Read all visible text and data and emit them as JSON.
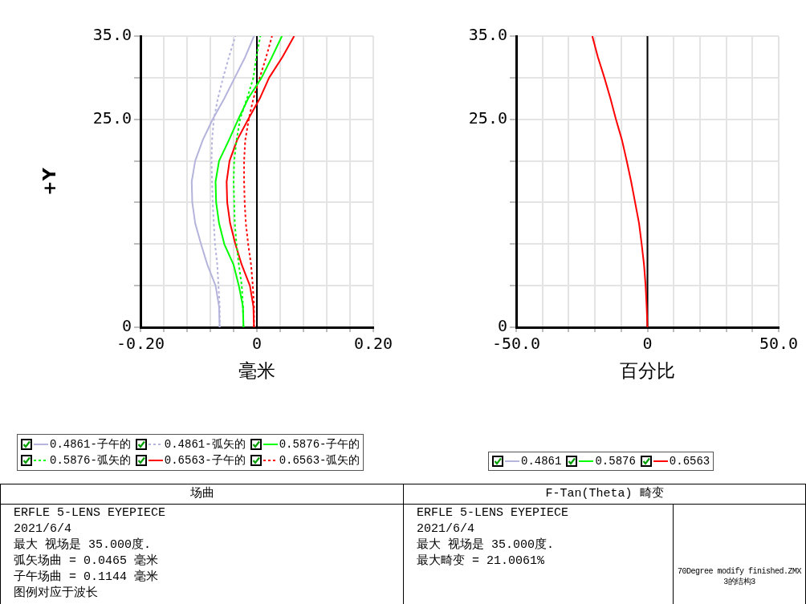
{
  "chart_data": [
    {
      "type": "line",
      "title": "场曲",
      "xlabel": "毫米",
      "ylabel": "+Y",
      "xlim": [
        -0.2,
        0.2
      ],
      "xticks": [
        {
          "value": -0.2,
          "label": "-0.20"
        },
        {
          "value": -0.16,
          "label": null
        },
        {
          "value": -0.12,
          "label": null
        },
        {
          "value": -0.08,
          "label": null
        },
        {
          "value": -0.04,
          "label": null
        },
        0,
        {
          "value": 0.04,
          "label": null
        },
        {
          "value": 0.08,
          "label": null
        },
        {
          "value": 0.12,
          "label": null
        },
        {
          "value": 0.16,
          "label": null
        },
        {
          "value": 0.2,
          "label": "0.20"
        }
      ],
      "ylim": [
        0,
        35
      ],
      "yticks": [
        0,
        {
          "value": 5,
          "label": null
        },
        {
          "value": 10,
          "label": null
        },
        {
          "value": 15,
          "label": null
        },
        {
          "value": 20,
          "label": null
        },
        {
          "value": 25,
          "label": "25.0"
        },
        {
          "value": 30,
          "label": null
        },
        {
          "value": 35,
          "label": "35.0"
        }
      ],
      "grid": true,
      "legend": "bottom",
      "ref_lines": [
        {
          "axis": "x",
          "value": 0,
          "color": "#000000"
        }
      ],
      "series": [
        {
          "name": "0.4861-子午的",
          "color": "#b4b4dc",
          "line_style": "solid",
          "x": [
            -0.064,
            -0.065,
            -0.071,
            -0.085,
            -0.096,
            -0.106,
            -0.111,
            -0.112,
            -0.106,
            -0.093,
            -0.076,
            -0.056,
            -0.038,
            -0.02,
            -0.005
          ],
          "values": [
            0,
            2.5,
            5,
            7.5,
            10,
            12.5,
            15,
            17.5,
            20,
            22.5,
            25,
            27.5,
            30,
            32.5,
            35
          ]
        },
        {
          "name": "0.4861-弧矢的",
          "color": "#b4b4dc",
          "line_style": "dotted",
          "x": [
            -0.064,
            -0.064,
            -0.066,
            -0.068,
            -0.072,
            -0.074,
            -0.076,
            -0.077,
            -0.078,
            -0.077,
            -0.074,
            -0.067,
            -0.058,
            -0.048,
            -0.037
          ],
          "values": [
            0,
            2.5,
            5,
            7.5,
            10,
            12.5,
            15,
            17.5,
            20,
            22.5,
            25,
            27.5,
            30,
            32.5,
            35
          ]
        },
        {
          "name": "0.5876-子午的",
          "color": "#00ff00",
          "line_style": "solid",
          "x": [
            -0.023,
            -0.024,
            -0.031,
            -0.04,
            -0.056,
            -0.065,
            -0.07,
            -0.071,
            -0.065,
            -0.048,
            -0.032,
            -0.015,
            0.008,
            0.026,
            0.043
          ],
          "values": [
            0,
            2.5,
            5,
            7.5,
            10,
            12.5,
            15,
            17.5,
            20,
            22.5,
            25,
            27.5,
            30,
            32.5,
            35
          ]
        },
        {
          "name": "0.5876-弧矢的",
          "color": "#00ff00",
          "line_style": "dotted",
          "x": [
            -0.023,
            -0.024,
            -0.026,
            -0.031,
            -0.035,
            -0.038,
            -0.039,
            -0.04,
            -0.039,
            -0.035,
            -0.029,
            -0.017,
            -0.006,
            -0.001,
            0.006
          ],
          "values": [
            0,
            2.5,
            5,
            7.5,
            10,
            12.5,
            15,
            17.5,
            20,
            22.5,
            25,
            27.5,
            30,
            32.5,
            35
          ]
        },
        {
          "name": "0.6563-子午的",
          "color": "#ff0000",
          "line_style": "solid",
          "x": [
            -0.005,
            -0.006,
            -0.012,
            -0.026,
            -0.037,
            -0.046,
            -0.051,
            -0.052,
            -0.047,
            -0.034,
            -0.015,
            0.005,
            0.021,
            0.044,
            0.064
          ],
          "values": [
            0,
            2.5,
            5,
            7.5,
            10,
            12.5,
            15,
            17.5,
            20,
            22.5,
            25,
            27.5,
            30,
            32.5,
            35
          ]
        },
        {
          "name": "0.6563-弧矢的",
          "color": "#ff0000",
          "line_style": "dotted",
          "x": [
            -0.005,
            -0.005,
            -0.007,
            -0.01,
            -0.015,
            -0.019,
            -0.021,
            -0.022,
            -0.022,
            -0.02,
            -0.014,
            -0.006,
            0.005,
            0.016,
            0.026
          ],
          "values": [
            0,
            2.5,
            5,
            7.5,
            10,
            12.5,
            15,
            17.5,
            20,
            22.5,
            25,
            27.5,
            30,
            32.5,
            35
          ]
        }
      ],
      "annotations": [
        "ERFLE 5-LENS EYEPIECE",
        "2021/6/4",
        "最大 视场是 35.000度.",
        "弧矢场曲 = 0.0465 毫米",
        "子午场曲 = 0.1144 毫米",
        "图例对应于波长"
      ]
    },
    {
      "type": "line",
      "title": "F-Tan(Theta) 畸变",
      "xlabel": "百分比",
      "xlim": [
        -50,
        50
      ],
      "xticks": [
        {
          "value": -50,
          "label": "-50.0"
        },
        {
          "value": -40,
          "label": null
        },
        {
          "value": -30,
          "label": null
        },
        {
          "value": -20,
          "label": null
        },
        {
          "value": -10,
          "label": null
        },
        0,
        {
          "value": 10,
          "label": null
        },
        {
          "value": 20,
          "label": null
        },
        {
          "value": 30,
          "label": null
        },
        {
          "value": 40,
          "label": null
        },
        {
          "value": 50,
          "label": "50.0"
        }
      ],
      "ylim": [
        0,
        35
      ],
      "yticks": [
        0,
        {
          "value": 5,
          "label": null
        },
        {
          "value": 10,
          "label": null
        },
        {
          "value": 15,
          "label": null
        },
        {
          "value": 20,
          "label": null
        },
        {
          "value": 25,
          "label": "25.0"
        },
        {
          "value": 30,
          "label": null
        },
        {
          "value": 35,
          "label": "35.0"
        }
      ],
      "grid": true,
      "legend": "bottom",
      "ref_lines": [
        {
          "axis": "x",
          "value": 0,
          "color": "#000000"
        }
      ],
      "series": [
        {
          "name": "0.4861",
          "color": "#b4b4dc",
          "line_style": "solid",
          "values": [
            null
          ]
        },
        {
          "name": "0.5876",
          "color": "#00ff00",
          "line_style": "solid",
          "values": [
            null
          ]
        },
        {
          "name": "0.6563",
          "color": "#ff0000",
          "line_style": "solid",
          "x": [
            0,
            -0.3,
            -0.7,
            -1.3,
            -2.2,
            -3.2,
            -4.7,
            -6.2,
            -7.9,
            -9.7,
            -12.0,
            -14.1,
            -16.4,
            -18.9,
            -21.0
          ],
          "values": [
            0,
            2.5,
            5,
            7.5,
            10,
            12.5,
            15,
            17.5,
            20,
            22.5,
            25,
            27.5,
            30,
            32.5,
            35
          ]
        }
      ],
      "annotations": [
        "ERFLE 5-LENS EYEPIECE",
        "2021/6/4",
        "最大 视场是 35.000度.",
        "最大畸变 = 21.0061%"
      ]
    },
    {
      "type": "other",
      "annotations": [
        "70Degree modify finished.ZMX",
        "3的结构3"
      ]
    }
  ]
}
